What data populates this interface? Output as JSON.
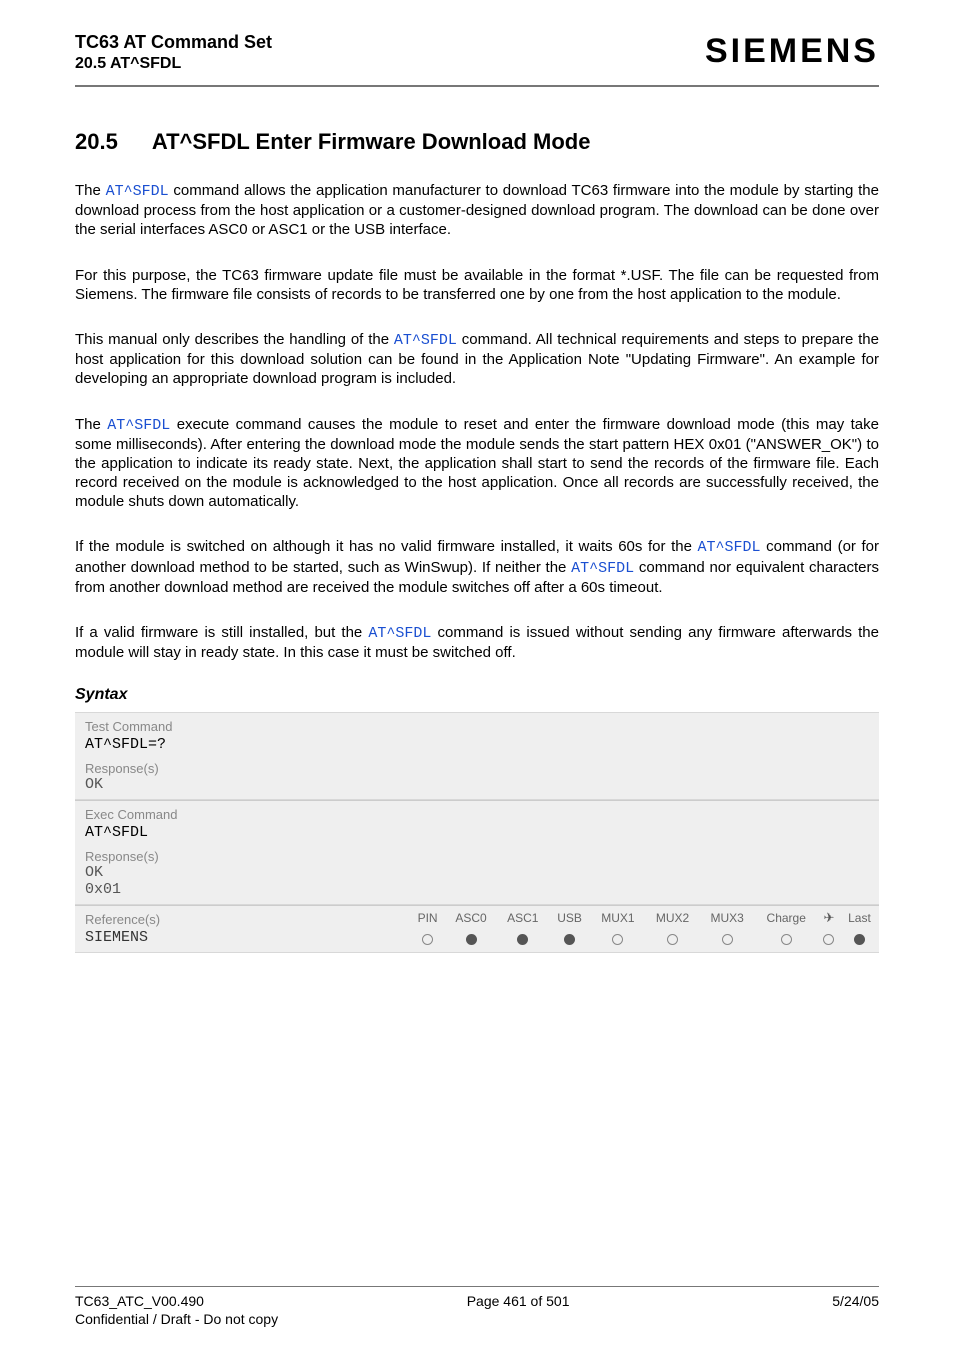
{
  "header": {
    "title": "TC63 AT Command Set",
    "subtitle": "20.5 AT^SFDL",
    "brand": "SIEMENS"
  },
  "section": {
    "number": "20.5",
    "title": "AT^SFDL   Enter Firmware Download Mode"
  },
  "cmd_name": "AT^SFDL",
  "paragraphs": {
    "p1a": "The ",
    "p1b": " command allows the application manufacturer to download TC63 firmware into the module by starting the download process from the host application or a customer-designed download program. The download can be done over the serial interfaces ASC0 or ASC1 or the USB interface.",
    "p2": "For this purpose, the TC63 firmware update file must be available in the format *.USF. The file can be requested from Siemens. The firmware file consists of records to be transferred one by one from the host application to the module.",
    "p3a": "This manual only describes the handling of the ",
    "p3b": " command. All technical requirements and steps to prepare the host application for this download solution can be found in the Application Note \"Updating Firmware\". An example for developing an appropriate download program is included.",
    "p4a": "The ",
    "p4b": " execute command causes the module to reset and enter the firmware download mode (this may take some milliseconds). After entering the download mode the module sends the start pattern HEX 0x01 (\"ANSWER_OK\") to the application to indicate its ready state. Next, the application shall start to send the records of the firmware file. Each record received on the module is acknowledged to the host application. Once all records are successfully received, the module shuts down automatically.",
    "p5a": "If the module is switched on although it has no valid firmware installed, it waits 60s for the ",
    "p5b": " command (or for another download method to be started, such as WinSwup). If neither the ",
    "p5c": " command nor equivalent characters from another download method are received the module switches off after a 60s timeout.",
    "p6a": "If a valid firmware is still installed, but the ",
    "p6b": " command is issued without sending any firmware afterwards the module will stay in ready state. In this case it must be switched off."
  },
  "syntax": {
    "heading": "Syntax",
    "test_label": "Test Command",
    "test_cmd": "AT^SFDL=?",
    "response_label": "Response(s)",
    "test_resp": "OK",
    "exec_label": "Exec Command",
    "exec_cmd": "AT^SFDL",
    "exec_resp1": "OK",
    "exec_resp2": "0x01",
    "ref_label": "Reference(s)",
    "ref_value": "SIEMENS",
    "columns": [
      "PIN",
      "ASC0",
      "ASC1",
      "USB",
      "MUX1",
      "MUX2",
      "MUX3",
      "Charge",
      "✈",
      "Last"
    ],
    "values": [
      "empty",
      "fill",
      "fill",
      "fill",
      "empty",
      "empty",
      "empty",
      "empty",
      "empty",
      "fill"
    ]
  },
  "footer": {
    "doc": "TC63_ATC_V00.490",
    "page": "Page 461 of 501",
    "date": "5/24/05",
    "note": "Confidential / Draft - Do not copy"
  },
  "colors": {
    "cmd_link": "#1a4fd1",
    "box_bg": "#efefef",
    "label_text": "#888888",
    "rule": "#777777"
  },
  "fonts": {
    "body_size_pt": 11,
    "heading_size_pt": 17,
    "brand_size_pt": 26,
    "mono_family": "Courier New"
  }
}
